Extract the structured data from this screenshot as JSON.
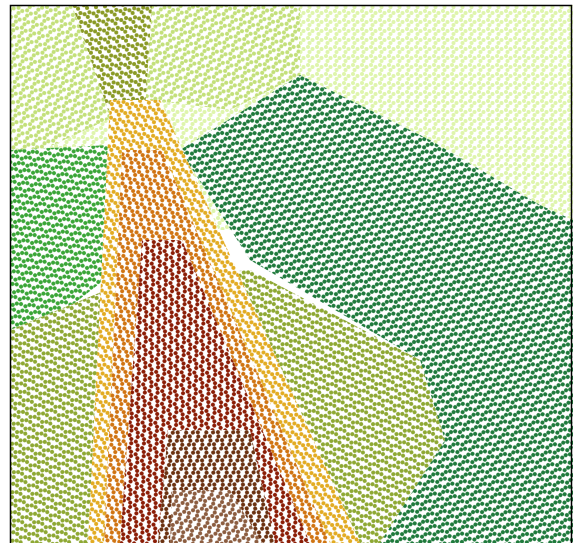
{
  "regions": [
    {
      "color": "#dff5ad"
    },
    {
      "color": "#c3e07a"
    },
    {
      "color": "#1f7a3c"
    },
    {
      "color": "#3aa537"
    },
    {
      "color": "#8ea833"
    },
    {
      "color": "#8a9a25"
    },
    {
      "color": "#e2ab22"
    },
    {
      "color": "#d07412"
    },
    {
      "color": "#8b1d06"
    },
    {
      "color": "#6b3211"
    },
    {
      "color": "#8c5d40"
    }
  ]
}
